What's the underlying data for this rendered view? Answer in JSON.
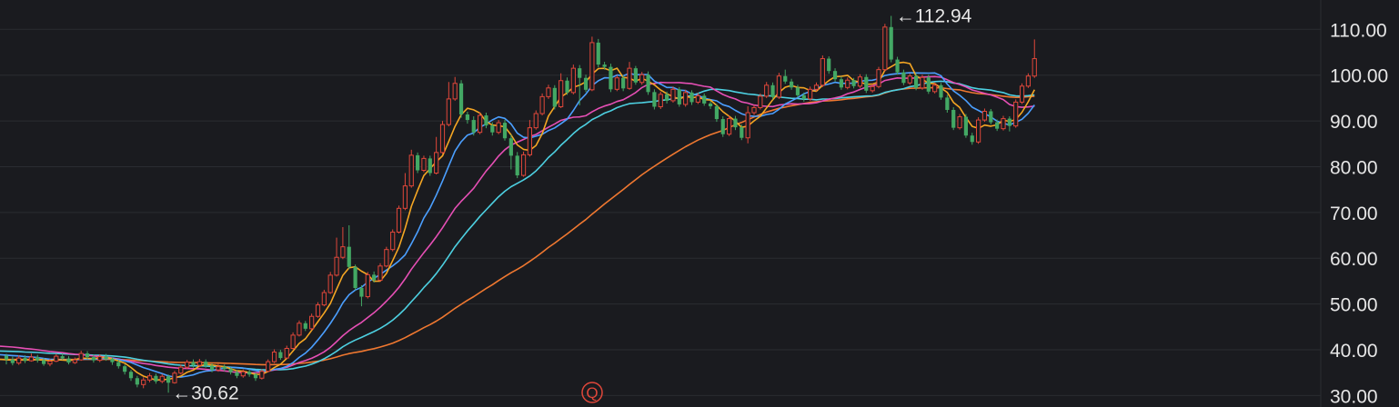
{
  "chart_data": {
    "type": "candlestick",
    "y_axis": {
      "position": "right",
      "ticks": [
        "110.00",
        "100.00",
        "90.00",
        "80.00",
        "70.00",
        "60.00",
        "50.00",
        "40.00",
        "30.00"
      ],
      "tick_values": [
        110,
        100,
        90,
        80,
        70,
        60,
        50,
        40,
        30
      ],
      "ylim": [
        27.5,
        118
      ]
    },
    "grid": true,
    "colors": {
      "background": "#1a1b1f",
      "grid": "#2a2c31",
      "up": "#e0473a",
      "down": "#43a864",
      "ma1": "#f5a623",
      "ma2": "#4b9fff",
      "ma3": "#e64fb5",
      "ma4": "#4dd0e1",
      "ma5": "#f07830"
    },
    "annotations": {
      "high": {
        "label": "←112.94",
        "value": 112.94
      },
      "low": {
        "label": "←30.62",
        "value": 30.62
      }
    },
    "event_marker": {
      "label": "Q"
    },
    "candles": [
      [
        38.7,
        37.9,
        39.1,
        36.8
      ],
      [
        37.9,
        37.1,
        38.5,
        36.6
      ],
      [
        37.1,
        38.2,
        38.8,
        36.7
      ],
      [
        38.2,
        37.6,
        38.8,
        37.1
      ],
      [
        37.6,
        38.4,
        39.2,
        37.4
      ],
      [
        38.4,
        37.7,
        38.9,
        37.2
      ],
      [
        37.7,
        36.9,
        38.2,
        36.5
      ],
      [
        36.9,
        37.5,
        38,
        36.4
      ],
      [
        37.5,
        38.6,
        39.1,
        37.3
      ],
      [
        38.6,
        38.1,
        39.2,
        37.8
      ],
      [
        38.1,
        37.2,
        38.6,
        36.8
      ],
      [
        37.2,
        37.8,
        38.3,
        36.9
      ],
      [
        37.8,
        39.2,
        39.8,
        37.6
      ],
      [
        39.2,
        38.4,
        39.7,
        37.9
      ],
      [
        38.4,
        37.7,
        38.9,
        37.2
      ],
      [
        37.7,
        38.5,
        39,
        37.3
      ],
      [
        38.5,
        38,
        39.1,
        37.6
      ],
      [
        38,
        37.3,
        38.4,
        36.7
      ],
      [
        37.3,
        36.4,
        37.8,
        35.9
      ],
      [
        36.4,
        35.2,
        36.8,
        34.6
      ],
      [
        35.2,
        33.8,
        35.6,
        33.2
      ],
      [
        33.8,
        32.4,
        34.3,
        31.8
      ],
      [
        32.4,
        33.4,
        34,
        31.6
      ],
      [
        33.4,
        34.3,
        34.9,
        32.9
      ],
      [
        34.3,
        33.1,
        34.8,
        32.6
      ],
      [
        33.1,
        34.2,
        34.7,
        32.7
      ],
      [
        34.2,
        32.8,
        34.6,
        30.62
      ],
      [
        32.8,
        34.9,
        35.4,
        32.6
      ],
      [
        34.9,
        36.2,
        36.8,
        34.6
      ],
      [
        36.2,
        37.3,
        37.8,
        35.8
      ],
      [
        37.3,
        36.6,
        37.9,
        36.1
      ],
      [
        36.6,
        37.4,
        38,
        36.2
      ],
      [
        37.4,
        36.5,
        37.9,
        36.1
      ],
      [
        36.5,
        35.6,
        37,
        35.1
      ],
      [
        35.6,
        36.3,
        36.9,
        35.2
      ],
      [
        36.3,
        35.8,
        36.8,
        35.3
      ],
      [
        35.8,
        35.1,
        36.2,
        34.6
      ],
      [
        35.1,
        34.3,
        35.6,
        33.8
      ],
      [
        34.3,
        35.2,
        35.7,
        33.9
      ],
      [
        35.2,
        34.6,
        35.7,
        34.1
      ],
      [
        34.6,
        33.8,
        35,
        33.2
      ],
      [
        33.8,
        35.3,
        35.8,
        33.5
      ],
      [
        35.3,
        37.4,
        37.9,
        35.1
      ],
      [
        37.4,
        39.5,
        40.1,
        37.1
      ],
      [
        39.5,
        38.2,
        40,
        37.8
      ],
      [
        38.2,
        40.3,
        40.9,
        38
      ],
      [
        40.3,
        43.2,
        43.8,
        40.1
      ],
      [
        43.2,
        45.8,
        46.4,
        42.9
      ],
      [
        45.8,
        44.6,
        46.3,
        44.1
      ],
      [
        44.6,
        47.3,
        47.9,
        44.3
      ],
      [
        47.3,
        49.8,
        50.4,
        47
      ],
      [
        49.8,
        52.5,
        53.1,
        49.5
      ],
      [
        52.5,
        56.3,
        57,
        52.2
      ],
      [
        56.3,
        60.2,
        64.5,
        56
      ],
      [
        60.2,
        62.5,
        66.8,
        59.8
      ],
      [
        62.5,
        58.1,
        67.2,
        57.6
      ],
      [
        58.1,
        53.5,
        58.6,
        53
      ],
      [
        53.5,
        51.6,
        54.1,
        49.5
      ],
      [
        51.6,
        56.4,
        57,
        51.2
      ],
      [
        56.4,
        55.2,
        57.1,
        54.7
      ],
      [
        55.2,
        58.3,
        58.9,
        54.9
      ],
      [
        58.3,
        61.9,
        62.5,
        58
      ],
      [
        61.9,
        65.7,
        66.3,
        61.5
      ],
      [
        65.7,
        70.9,
        71.5,
        65.4
      ],
      [
        70.9,
        75.8,
        78.6,
        70.5
      ],
      [
        75.8,
        82.5,
        83.7,
        75.4
      ],
      [
        82.5,
        79.2,
        83.1,
        78.6
      ],
      [
        79.2,
        81.8,
        82.4,
        78.8
      ],
      [
        81.8,
        78.6,
        82.4,
        78
      ],
      [
        78.6,
        83.1,
        86.5,
        78.3
      ],
      [
        83.1,
        89.2,
        90,
        82.8
      ],
      [
        89.2,
        94.8,
        98.5,
        88.8
      ],
      [
        94.8,
        98.2,
        99.6,
        94.4
      ],
      [
        98.2,
        91.4,
        98.9,
        90.7
      ],
      [
        91.4,
        90.2,
        92,
        89.4
      ],
      [
        90.2,
        87.5,
        91,
        86.8
      ],
      [
        87.5,
        91.2,
        91.9,
        87.1
      ],
      [
        91.2,
        89,
        91.8,
        88.4
      ],
      [
        89,
        87.5,
        89.7,
        86.8
      ],
      [
        87.5,
        89.6,
        90.2,
        87.1
      ],
      [
        89.6,
        86.2,
        90.3,
        85.7
      ],
      [
        86.2,
        82.4,
        87,
        79.4
      ],
      [
        82.4,
        78.1,
        83.2,
        77.5
      ],
      [
        78.1,
        82.6,
        83.3,
        77.8
      ],
      [
        82.6,
        88.5,
        90.2,
        82.2
      ],
      [
        88.5,
        91.6,
        92.3,
        88.1
      ],
      [
        91.6,
        95.3,
        96,
        91.2
      ],
      [
        95.3,
        97.2,
        97.9,
        94.8
      ],
      [
        97.2,
        93.1,
        97.8,
        92.5
      ],
      [
        93.1,
        98.8,
        100.4,
        92.8
      ],
      [
        98.8,
        96.2,
        99.5,
        95.7
      ],
      [
        96.2,
        101.5,
        102.3,
        95.8
      ],
      [
        101.5,
        99.4,
        102.2,
        93.4
      ],
      [
        99.4,
        96.8,
        100.1,
        96.3
      ],
      [
        96.8,
        107.1,
        108.4,
        96.5
      ],
      [
        107.1,
        102.3,
        107.9,
        101.7
      ],
      [
        102.3,
        101.8,
        102.9,
        101.2
      ],
      [
        101.8,
        96.9,
        102.5,
        96.3
      ],
      [
        96.9,
        99.4,
        100,
        96.5
      ],
      [
        99.4,
        97.1,
        100,
        96.5
      ],
      [
        97.1,
        101.5,
        102.9,
        96.8
      ],
      [
        101.5,
        98.4,
        102,
        97.9
      ],
      [
        98.4,
        100.1,
        100.7,
        97.9
      ],
      [
        100.1,
        96.3,
        100.8,
        95.7
      ],
      [
        96.3,
        93.1,
        96.9,
        92.5
      ],
      [
        93.1,
        95.8,
        96.4,
        92.6
      ],
      [
        95.8,
        94.4,
        96.4,
        93.8
      ],
      [
        94.4,
        96.9,
        97.5,
        94
      ],
      [
        96.9,
        93.6,
        97.4,
        93.1
      ],
      [
        93.6,
        96.2,
        96.8,
        93.1
      ],
      [
        96.2,
        94.1,
        96.7,
        93.5
      ],
      [
        94.1,
        95.5,
        96.1,
        93.7
      ],
      [
        95.5,
        93.8,
        96,
        93.3
      ],
      [
        93.8,
        93.2,
        94.3,
        92.6
      ],
      [
        93.2,
        90.4,
        93.7,
        89.8
      ],
      [
        90.4,
        87.1,
        91,
        86.5
      ],
      [
        87.1,
        90.5,
        91.2,
        86.7
      ],
      [
        90.5,
        88.6,
        91.1,
        88
      ],
      [
        88.6,
        86.3,
        89.2,
        85.8
      ],
      [
        86.3,
        91.8,
        93.2,
        85.1
      ],
      [
        91.8,
        92.9,
        93.5,
        91.3
      ],
      [
        92.9,
        95.4,
        96,
        92.5
      ],
      [
        95.4,
        97.8,
        98.5,
        95
      ],
      [
        97.8,
        95.2,
        98.4,
        94.7
      ],
      [
        95.2,
        99.8,
        100.5,
        94.8
      ],
      [
        99.8,
        98.6,
        101.2,
        98.1
      ],
      [
        98.6,
        97.3,
        99.2,
        96.8
      ],
      [
        97.3,
        95.6,
        97.9,
        95.1
      ],
      [
        95.6,
        94.8,
        96.2,
        94.2
      ],
      [
        94.8,
        96.9,
        97.5,
        94.4
      ],
      [
        96.9,
        97.8,
        98.4,
        96.5
      ],
      [
        97.8,
        103.6,
        104.3,
        97.4
      ],
      [
        103.6,
        100.9,
        104.1,
        100.3
      ],
      [
        100.9,
        99.1,
        101.5,
        98.6
      ],
      [
        99.1,
        97.3,
        99.7,
        96.8
      ],
      [
        97.3,
        98.9,
        99.5,
        96.9
      ],
      [
        98.9,
        97.6,
        99.4,
        97.1
      ],
      [
        97.6,
        99.6,
        100.2,
        97.2
      ],
      [
        99.6,
        96.6,
        100.2,
        96.1
      ],
      [
        96.6,
        97.5,
        98.1,
        96.2
      ],
      [
        97.5,
        101.2,
        101.8,
        97.1
      ],
      [
        101.2,
        110.5,
        111.2,
        100.8
      ],
      [
        110.5,
        103.4,
        112.94,
        102.8
      ],
      [
        103.4,
        100.6,
        104,
        100.1
      ],
      [
        100.6,
        98.3,
        101.2,
        97.8
      ],
      [
        98.3,
        99.8,
        100.4,
        97.9
      ],
      [
        99.8,
        97.2,
        100.4,
        96.7
      ],
      [
        97.2,
        99.5,
        100.1,
        96.8
      ],
      [
        99.5,
        96.4,
        100.1,
        95.9
      ],
      [
        96.4,
        97.8,
        98.4,
        96
      ],
      [
        97.8,
        95.1,
        98.3,
        94.6
      ],
      [
        95.1,
        92.4,
        95.7,
        91.8
      ],
      [
        92.4,
        88.5,
        93,
        88
      ],
      [
        88.5,
        90.9,
        91.5,
        88.1
      ],
      [
        90.9,
        86.8,
        91.5,
        86.3
      ],
      [
        86.8,
        85.4,
        87.4,
        84.8
      ],
      [
        85.4,
        90.2,
        90.8,
        85
      ],
      [
        90.2,
        92.1,
        92.7,
        89.8
      ],
      [
        92.1,
        89.7,
        92.6,
        89.2
      ],
      [
        89.7,
        88.3,
        90.3,
        87.8
      ],
      [
        88.3,
        90.5,
        91.1,
        87.9
      ],
      [
        90.5,
        88.9,
        91,
        87.7
      ],
      [
        88.9,
        94.1,
        94.7,
        88.5
      ],
      [
        94.1,
        97.6,
        98.2,
        93.7
      ],
      [
        97.6,
        99.8,
        100.4,
        97.2
      ],
      [
        99.8,
        103.6,
        107.8,
        99.4
      ]
    ]
  }
}
